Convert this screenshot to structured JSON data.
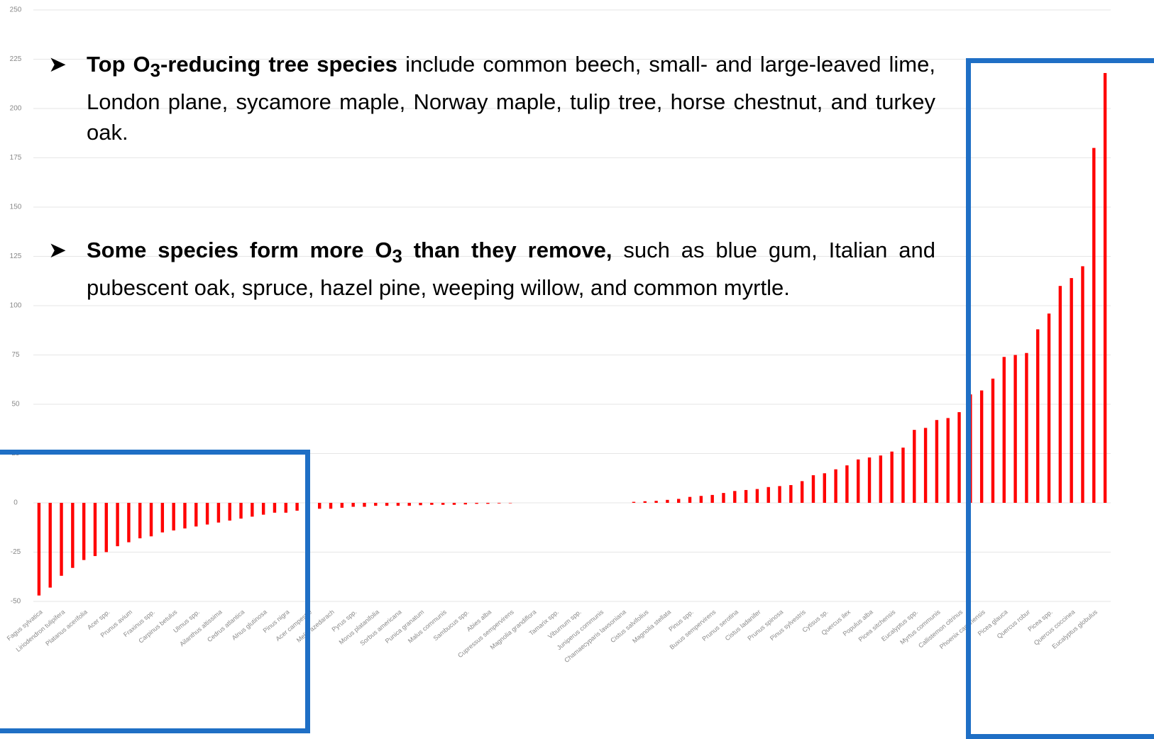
{
  "chart_data": {
    "type": "bar",
    "categories": [
      "Fagus sylvatica",
      null,
      "Liriodendron tulipifera",
      null,
      "Platanus acerifolia",
      null,
      "Acer spp.",
      null,
      "Prunus avium",
      null,
      "Fraxinus spp.",
      null,
      "Carpinus betulus",
      null,
      "Ulmus spp.",
      null,
      "Ailanthus altissima",
      null,
      "Cedrus atlantica",
      null,
      "Alnus glutinosa",
      null,
      "Pinus nigra",
      null,
      "Acer campestre",
      null,
      "Melia azedarach",
      null,
      "Pyrus spp.",
      null,
      "Morus platanifolia",
      null,
      "Sorbus americana",
      null,
      "Punica granatum",
      null,
      "Malus communis",
      null,
      "Sambucus spp.",
      null,
      "Abies alba",
      null,
      "Cupressus sempervirens",
      null,
      "Magnolia grandiflora",
      null,
      "Tamarix spp.",
      null,
      "Viburnum spp.",
      null,
      "Juniperus communis",
      null,
      "Chamaecyparis lawsoniana",
      null,
      "Cistus salvifolius",
      null,
      "Magnolia stellata",
      null,
      "Pinus spp.",
      null,
      "Buxus sempervirens",
      null,
      "Prunus serotina",
      null,
      "Cistus ladanifer",
      null,
      "Prunus spinosa",
      null,
      "Pinus sylvestris",
      null,
      "Cytisus sp.",
      null,
      "Quercus ilex",
      null,
      "Populus alba",
      null,
      "Picea sitchensis",
      null,
      "Eucalyptus spp.",
      null,
      "Myrtus communis",
      null,
      "Callistemon citrinus",
      null,
      "Phoenix canariensis",
      null,
      "Picea glauca",
      null,
      "Quercus robur",
      null,
      "Picea spp.",
      null,
      "Quercus coccinea",
      null,
      "Eucalyptus globulus",
      null
    ],
    "values": [
      -47,
      -43,
      -37,
      -33,
      -29,
      -27,
      -25,
      -22,
      -20,
      -18,
      -17,
      -15,
      -14,
      -13,
      -12,
      -11,
      -10,
      -9,
      -8,
      -7,
      -6,
      -5,
      -5,
      -4,
      -4,
      -3,
      -3,
      -2.5,
      -2,
      -2,
      -1.5,
      -1.5,
      -1.5,
      -1.5,
      -1.2,
      -1,
      -1,
      -1,
      -0.8,
      -0.5,
      -0.5,
      -0.3,
      -0.2,
      0,
      0,
      0,
      0,
      0,
      0,
      0,
      0,
      0,
      0,
      0.5,
      0.8,
      1,
      1.5,
      2,
      3,
      3.5,
      4,
      5,
      6,
      6.5,
      7,
      8,
      8.5,
      9,
      11,
      14,
      15,
      17,
      19,
      22,
      23,
      24,
      26,
      28,
      37,
      38,
      42,
      43,
      46,
      55,
      57,
      63,
      74,
      75,
      76,
      88,
      96,
      110,
      114,
      120,
      180,
      218
    ],
    "color": "#ff0000",
    "ylim": [
      -50,
      250
    ],
    "yticks": [
      -50,
      -25,
      0,
      25,
      50,
      75,
      100,
      125,
      150,
      175,
      200,
      225,
      250
    ],
    "grid": true,
    "annotations": [
      {
        "bold": [
          "Top O",
          "3",
          "-reducing tree species"
        ],
        "text": "include common beech, small- and large-leaved lime, London plane, sycamore maple, Norway maple, tulip tree, horse chestnut, and turkey oak."
      },
      {
        "bold": [
          "Some species form more O",
          "3",
          " than they remove,"
        ],
        "text": "such as blue gum, Italian and pubescent oak, spruce, hazel pine, weeping willow, and common myrtle."
      }
    ]
  }
}
